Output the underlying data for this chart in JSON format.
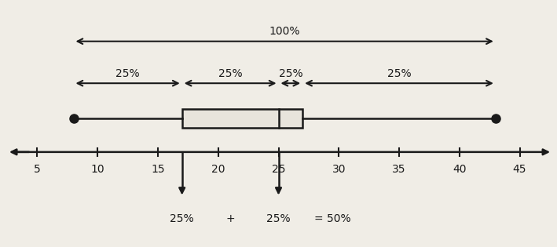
{
  "min_val": 8,
  "q1": 17,
  "median": 25,
  "q3": 27,
  "max_val": 43,
  "axis_min": 2,
  "axis_max": 48,
  "xticks": [
    5,
    10,
    15,
    20,
    25,
    30,
    35,
    40,
    45
  ],
  "bg_color": "#f0ede6",
  "box_color": "#e8e4dc",
  "box_edge_color": "#1a1a1a",
  "line_color": "#1a1a1a",
  "dot_color": "#1a1a1a",
  "fontsize_tick": 10,
  "fontsize_annot": 10
}
